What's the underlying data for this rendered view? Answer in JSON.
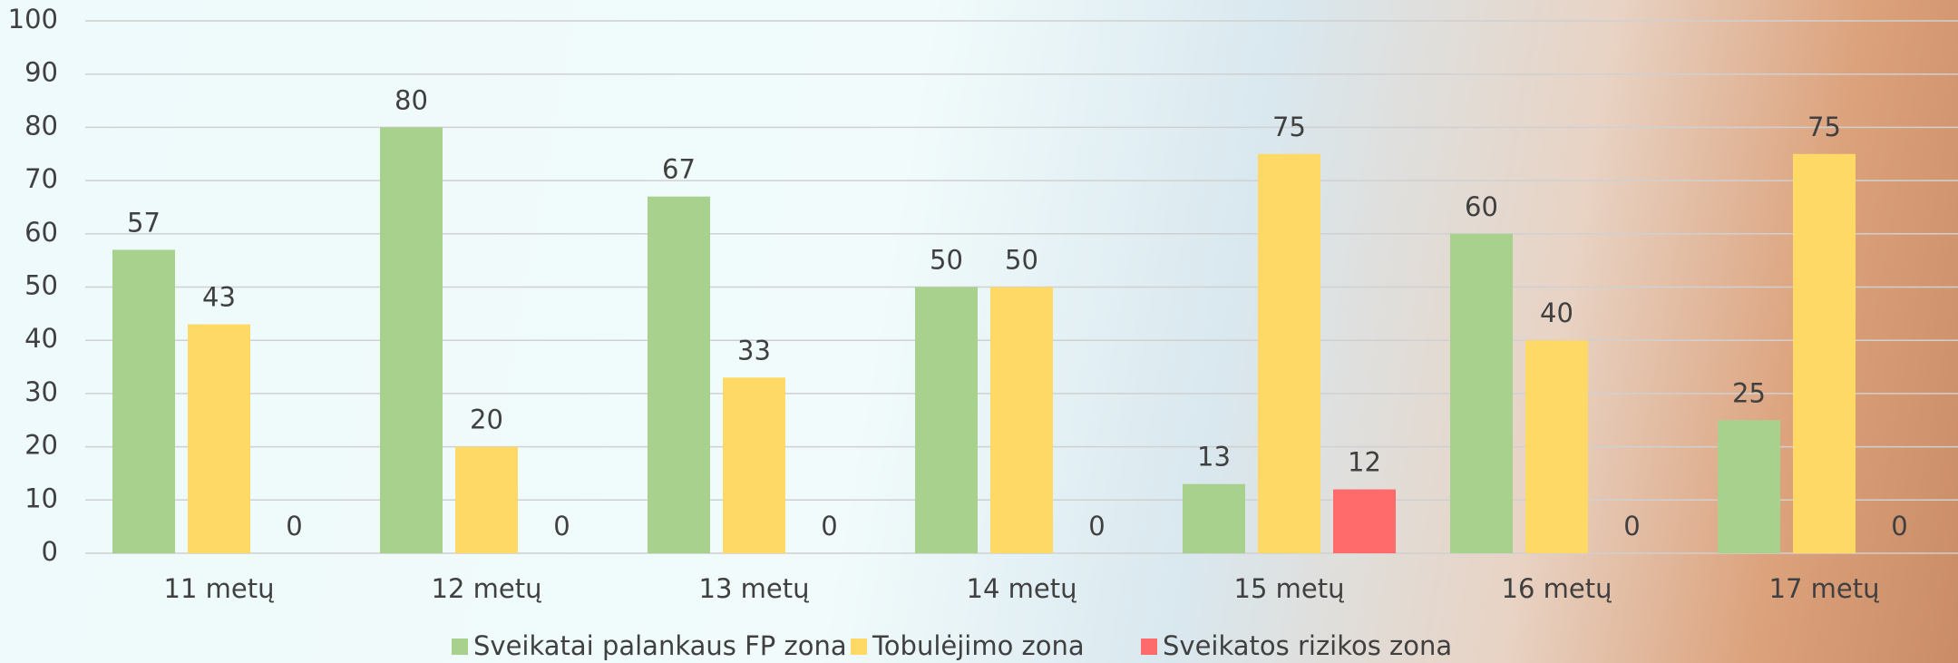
{
  "chart_data": {
    "type": "bar",
    "categories": [
      "11 metų",
      "12 metų",
      "13 metų",
      "14 metų",
      "15 metų",
      "16 metų",
      "17 metų"
    ],
    "series": [
      {
        "name": "Sveikatai palankaus FP zona",
        "color": "#a9d18e",
        "values": [
          57,
          80,
          67,
          50,
          13,
          60,
          25
        ]
      },
      {
        "name": "Tobulėjimo zona",
        "color": "#ffd966",
        "values": [
          43,
          20,
          33,
          50,
          75,
          40,
          75
        ]
      },
      {
        "name": "Sveikatos rizikos zona",
        "color": "#ff6b6b",
        "values": [
          0,
          0,
          0,
          0,
          12,
          0,
          0
        ]
      }
    ],
    "ylim": [
      0,
      100
    ],
    "yticks": [
      0,
      10,
      20,
      30,
      40,
      50,
      60,
      70,
      80,
      90,
      100
    ],
    "grid": true,
    "legend": "bottom",
    "data_labels": true
  }
}
